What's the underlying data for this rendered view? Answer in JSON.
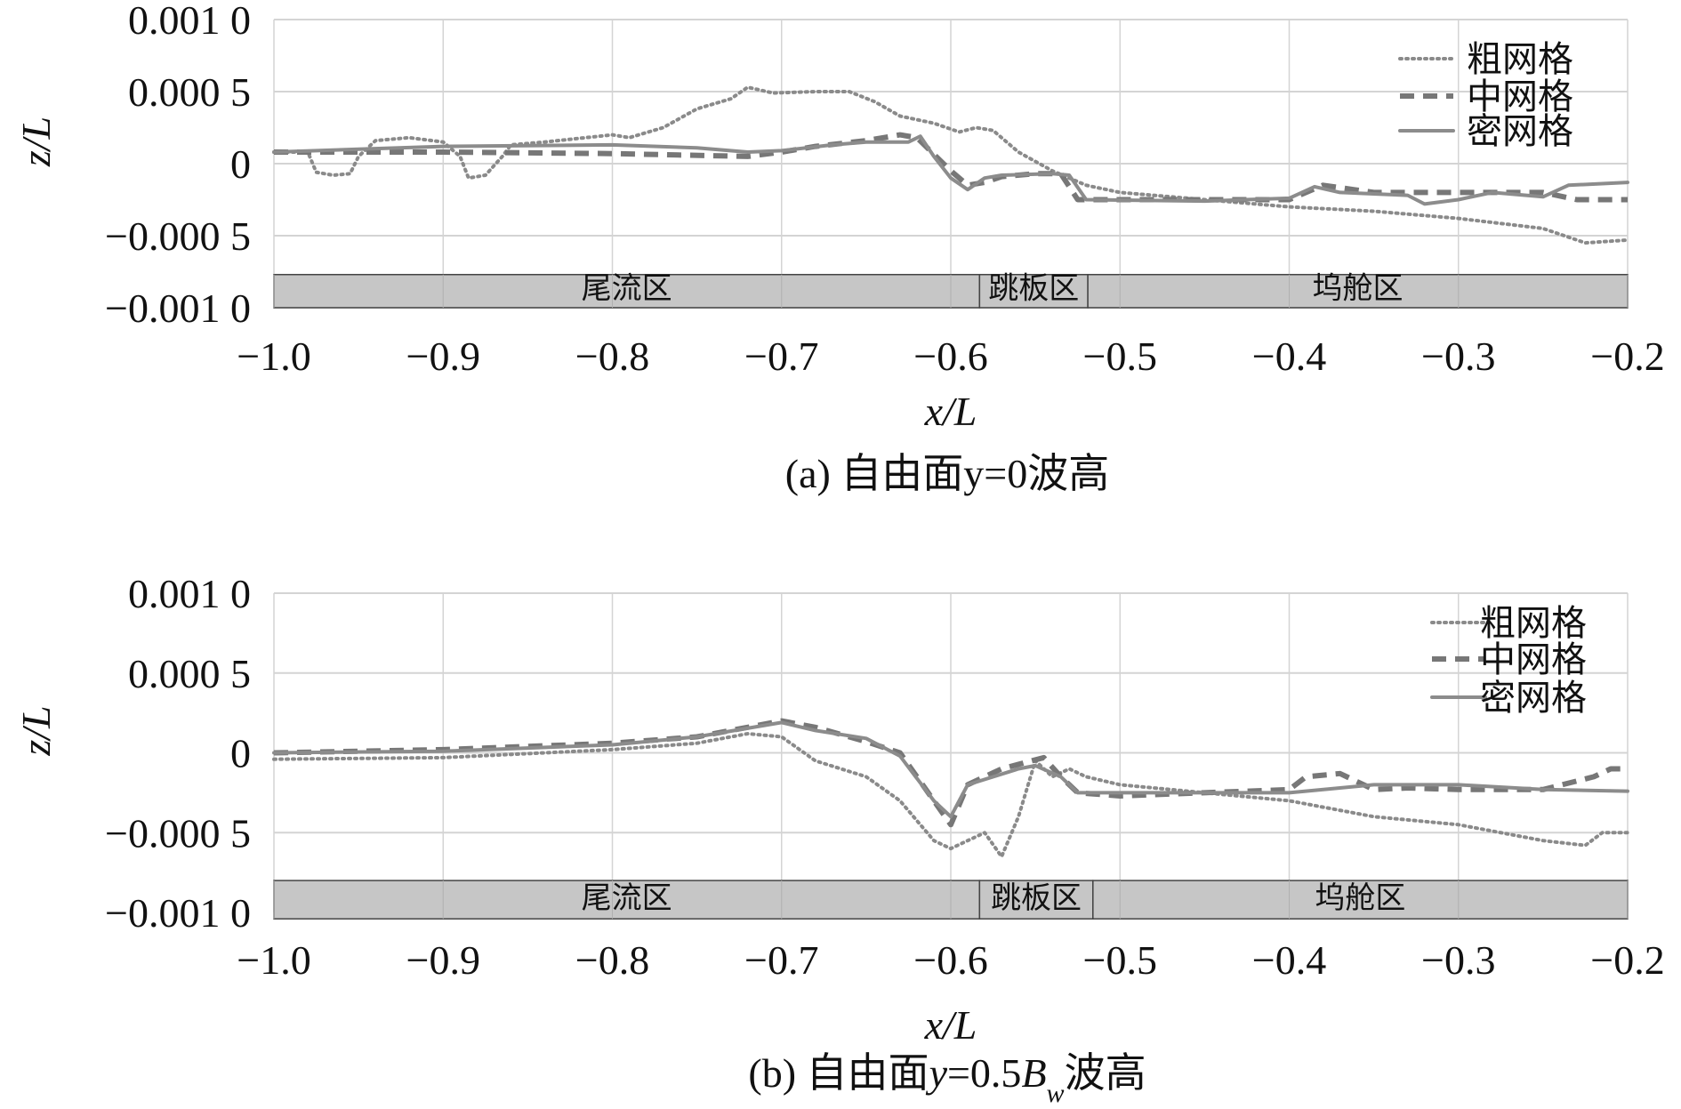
{
  "chart_data": [
    {
      "type": "line",
      "caption": "(a) 自由面y=0波高",
      "xlabel": "x/L",
      "ylabel": "z/L",
      "xlim": [
        -1.0,
        -0.2
      ],
      "ylim": [
        -0.001,
        0.001
      ],
      "xticks": [
        -1.0,
        -0.9,
        -0.8,
        -0.7,
        -0.6,
        -0.5,
        -0.4,
        -0.3,
        -0.2
      ],
      "xtick_labels": [
        "−1.0",
        "−0.9",
        "−0.8",
        "−0.7",
        "−0.6",
        "−0.5",
        "−0.4",
        "−0.3",
        "−0.2"
      ],
      "yticks": [
        0.001,
        0.0005,
        0,
        -0.0005,
        -0.001
      ],
      "ytick_labels": [
        "0.001 0",
        "0.000 5",
        "0",
        "−0.000 5",
        "−0.001 0"
      ],
      "grid": true,
      "legend_position": "top-right",
      "zones": [
        {
          "label": "尾流区",
          "from": -1.0,
          "to": -0.583
        },
        {
          "label": "跳板区",
          "from": -0.583,
          "to": -0.519
        },
        {
          "label": "坞舱区",
          "from": -0.519,
          "to": -0.2
        }
      ],
      "zone_band_ylim": [
        -0.001,
        -0.00077
      ],
      "series": [
        {
          "name": "粗网格",
          "style": "dotted",
          "points": [
            [
              -1.0,
              8e-05
            ],
            [
              -0.98,
              8e-05
            ],
            [
              -0.975,
              -6e-05
            ],
            [
              -0.965,
              -8e-05
            ],
            [
              -0.955,
              -7e-05
            ],
            [
              -0.95,
              5e-05
            ],
            [
              -0.94,
              0.00016
            ],
            [
              -0.92,
              0.00018
            ],
            [
              -0.9,
              0.00015
            ],
            [
              -0.89,
              5e-05
            ],
            [
              -0.885,
              -0.0001
            ],
            [
              -0.875,
              -8e-05
            ],
            [
              -0.865,
              5e-05
            ],
            [
              -0.86,
              0.00013
            ],
            [
              -0.84,
              0.00015
            ],
            [
              -0.8,
              0.0002
            ],
            [
              -0.79,
              0.00018
            ],
            [
              -0.77,
              0.00025
            ],
            [
              -0.75,
              0.00038
            ],
            [
              -0.73,
              0.00045
            ],
            [
              -0.72,
              0.00053
            ],
            [
              -0.705,
              0.00049
            ],
            [
              -0.68,
              0.0005
            ],
            [
              -0.66,
              0.0005
            ],
            [
              -0.645,
              0.00043
            ],
            [
              -0.63,
              0.00033
            ],
            [
              -0.61,
              0.00028
            ],
            [
              -0.595,
              0.00022
            ],
            [
              -0.585,
              0.00025
            ],
            [
              -0.575,
              0.00023
            ],
            [
              -0.56,
              8e-05
            ],
            [
              -0.54,
              -5e-05
            ],
            [
              -0.52,
              -0.00015
            ],
            [
              -0.5,
              -0.0002
            ],
            [
              -0.45,
              -0.00025
            ],
            [
              -0.4,
              -0.0003
            ],
            [
              -0.35,
              -0.00033
            ],
            [
              -0.3,
              -0.00038
            ],
            [
              -0.25,
              -0.00045
            ],
            [
              -0.225,
              -0.00055
            ],
            [
              -0.2,
              -0.00053
            ]
          ]
        },
        {
          "name": "中网格",
          "style": "dashed",
          "points": [
            [
              -1.0,
              8e-05
            ],
            [
              -0.9,
              8e-05
            ],
            [
              -0.8,
              7e-05
            ],
            [
              -0.72,
              5e-05
            ],
            [
              -0.7,
              8e-05
            ],
            [
              -0.68,
              0.00012
            ],
            [
              -0.65,
              0.00016
            ],
            [
              -0.63,
              0.0002
            ],
            [
              -0.62,
              0.00018
            ],
            [
              -0.6,
              -5e-05
            ],
            [
              -0.59,
              -0.00015
            ],
            [
              -0.58,
              -0.00013
            ],
            [
              -0.57,
              -9e-05
            ],
            [
              -0.55,
              -7e-05
            ],
            [
              -0.535,
              -7e-05
            ],
            [
              -0.525,
              -0.00025
            ],
            [
              -0.5,
              -0.00025
            ],
            [
              -0.4,
              -0.00025
            ],
            [
              -0.38,
              -0.00015
            ],
            [
              -0.35,
              -0.0002
            ],
            [
              -0.3,
              -0.0002
            ],
            [
              -0.25,
              -0.0002
            ],
            [
              -0.23,
              -0.00025
            ],
            [
              -0.2,
              -0.00025
            ]
          ]
        },
        {
          "name": "密网格",
          "style": "solid",
          "points": [
            [
              -1.0,
              8e-05
            ],
            [
              -0.95,
              0.0001
            ],
            [
              -0.9,
              0.00012
            ],
            [
              -0.8,
              0.00013
            ],
            [
              -0.75,
              0.00011
            ],
            [
              -0.72,
              8e-05
            ],
            [
              -0.7,
              9e-05
            ],
            [
              -0.67,
              0.00013
            ],
            [
              -0.65,
              0.00015
            ],
            [
              -0.625,
              0.00015
            ],
            [
              -0.618,
              0.00019
            ],
            [
              -0.61,
              5e-05
            ],
            [
              -0.6,
              -0.0001
            ],
            [
              -0.59,
              -0.00018
            ],
            [
              -0.58,
              -0.0001
            ],
            [
              -0.57,
              -8e-05
            ],
            [
              -0.54,
              -7e-05
            ],
            [
              -0.53,
              -8e-05
            ],
            [
              -0.52,
              -0.00025
            ],
            [
              -0.45,
              -0.00026
            ],
            [
              -0.4,
              -0.00024
            ],
            [
              -0.385,
              -0.00016
            ],
            [
              -0.37,
              -0.0002
            ],
            [
              -0.33,
              -0.00022
            ],
            [
              -0.32,
              -0.00028
            ],
            [
              -0.3,
              -0.00025
            ],
            [
              -0.28,
              -0.0002
            ],
            [
              -0.25,
              -0.00023
            ],
            [
              -0.235,
              -0.00015
            ],
            [
              -0.2,
              -0.00013
            ]
          ]
        }
      ]
    },
    {
      "type": "line",
      "caption_prefix": "(b) 自由面",
      "caption_var": "y",
      "caption_mid": "=0.5",
      "caption_B": "B",
      "caption_sub": "w",
      "caption_suffix": "波高",
      "xlabel": "x/L",
      "ylabel": "z/L",
      "xlim": [
        -1.0,
        -0.2
      ],
      "ylim": [
        -0.001,
        0.001
      ],
      "xticks": [
        -1.0,
        -0.9,
        -0.8,
        -0.7,
        -0.6,
        -0.5,
        -0.4,
        -0.3,
        -0.2
      ],
      "xtick_labels": [
        "−1.0",
        "−0.9",
        "−0.8",
        "−0.7",
        "−0.6",
        "−0.5",
        "−0.4",
        "−0.3",
        "−0.2"
      ],
      "yticks": [
        0.001,
        0.0005,
        0,
        -0.0005,
        -0.001
      ],
      "ytick_labels": [
        "0.001 0",
        "0.000 5",
        "0",
        "−0.000 5",
        "−0.001 0"
      ],
      "grid": true,
      "legend_position": "top-right",
      "zones": [
        {
          "label": "尾流区",
          "from": -1.0,
          "to": -0.583
        },
        {
          "label": "跳板区",
          "from": -0.583,
          "to": -0.516
        },
        {
          "label": "坞舱区",
          "from": -0.516,
          "to": -0.2
        }
      ],
      "zone_band_ylim": [
        -0.00104,
        -0.0008
      ],
      "series": [
        {
          "name": "粗网格",
          "style": "dotted",
          "points": [
            [
              -1.0,
              -4e-05
            ],
            [
              -0.9,
              -3e-05
            ],
            [
              -0.8,
              2e-05
            ],
            [
              -0.75,
              6e-05
            ],
            [
              -0.72,
              0.00012
            ],
            [
              -0.7,
              0.0001
            ],
            [
              -0.68,
              -5e-05
            ],
            [
              -0.65,
              -0.00015
            ],
            [
              -0.63,
              -0.0003
            ],
            [
              -0.61,
              -0.00055
            ],
            [
              -0.6,
              -0.0006
            ],
            [
              -0.59,
              -0.00055
            ],
            [
              -0.58,
              -0.0005
            ],
            [
              -0.57,
              -0.00065
            ],
            [
              -0.56,
              -0.0004
            ],
            [
              -0.55,
              -5e-05
            ],
            [
              -0.54,
              -0.00015
            ],
            [
              -0.53,
              -0.0001
            ],
            [
              -0.52,
              -0.00015
            ],
            [
              -0.5,
              -0.0002
            ],
            [
              -0.45,
              -0.00025
            ],
            [
              -0.4,
              -0.0003
            ],
            [
              -0.35,
              -0.0004
            ],
            [
              -0.3,
              -0.00045
            ],
            [
              -0.25,
              -0.00055
            ],
            [
              -0.225,
              -0.00058
            ],
            [
              -0.215,
              -0.0005
            ],
            [
              -0.2,
              -0.0005
            ]
          ]
        },
        {
          "name": "中网格",
          "style": "dashed",
          "points": [
            [
              -1.0,
              0.0
            ],
            [
              -0.9,
              2e-05
            ],
            [
              -0.8,
              6e-05
            ],
            [
              -0.75,
              0.0001
            ],
            [
              -0.7,
              0.0002
            ],
            [
              -0.68,
              0.00016
            ],
            [
              -0.65,
              7e-05
            ],
            [
              -0.63,
              0.0
            ],
            [
              -0.61,
              -0.0003
            ],
            [
              -0.6,
              -0.00045
            ],
            [
              -0.59,
              -0.0002
            ],
            [
              -0.57,
              -0.0001
            ],
            [
              -0.545,
              -3e-05
            ],
            [
              -0.535,
              -0.00015
            ],
            [
              -0.525,
              -0.00025
            ],
            [
              -0.5,
              -0.00027
            ],
            [
              -0.45,
              -0.00025
            ],
            [
              -0.4,
              -0.00023
            ],
            [
              -0.39,
              -0.00015
            ],
            [
              -0.37,
              -0.00013
            ],
            [
              -0.35,
              -0.00023
            ],
            [
              -0.33,
              -0.00022
            ],
            [
              -0.3,
              -0.00023
            ],
            [
              -0.25,
              -0.00023
            ],
            [
              -0.22,
              -0.00015
            ],
            [
              -0.21,
              -0.0001
            ],
            [
              -0.2,
              -0.0001
            ]
          ]
        },
        {
          "name": "密网格",
          "style": "solid",
          "points": [
            [
              -1.0,
              0.0
            ],
            [
              -0.9,
              1e-05
            ],
            [
              -0.8,
              5e-05
            ],
            [
              -0.75,
              0.0001
            ],
            [
              -0.7,
              0.00019
            ],
            [
              -0.68,
              0.00014
            ],
            [
              -0.65,
              9e-05
            ],
            [
              -0.63,
              -2e-05
            ],
            [
              -0.61,
              -0.0003
            ],
            [
              -0.6,
              -0.0004
            ],
            [
              -0.59,
              -0.0002
            ],
            [
              -0.56,
              -0.0001
            ],
            [
              -0.55,
              -8e-05
            ],
            [
              -0.535,
              -0.00015
            ],
            [
              -0.525,
              -0.00025
            ],
            [
              -0.4,
              -0.00025
            ],
            [
              -0.35,
              -0.0002
            ],
            [
              -0.3,
              -0.0002
            ],
            [
              -0.25,
              -0.00023
            ],
            [
              -0.2,
              -0.00024
            ]
          ]
        }
      ]
    }
  ]
}
